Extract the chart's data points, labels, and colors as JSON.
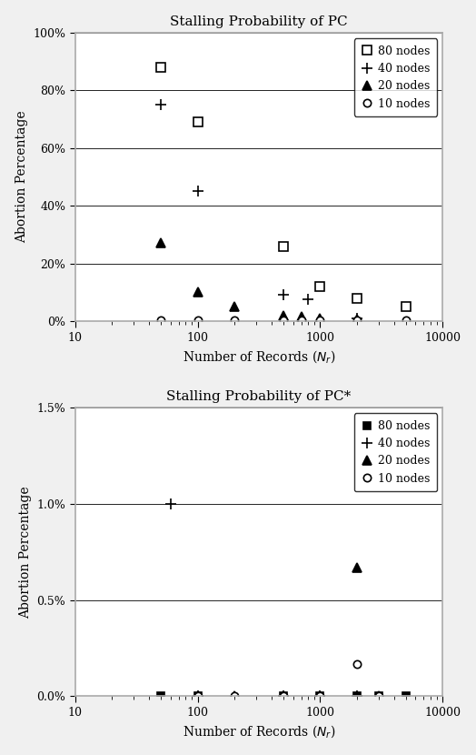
{
  "plot1": {
    "title": "Stalling Probability of PC",
    "series_order": [
      "80 nodes",
      "40 nodes",
      "20 nodes",
      "10 nodes"
    ],
    "series": {
      "80 nodes": {
        "marker": "s",
        "mfc": "white",
        "mec": "black",
        "ms": 7,
        "x": [
          50,
          100,
          500,
          1000,
          2000,
          5000
        ],
        "y": [
          0.88,
          0.69,
          0.26,
          0.12,
          0.08,
          0.05
        ]
      },
      "40 nodes": {
        "marker": "+",
        "mfc": "black",
        "mec": "black",
        "ms": 9,
        "x": [
          50,
          100,
          500,
          800,
          2000
        ],
        "y": [
          0.75,
          0.45,
          0.09,
          0.075,
          0.01
        ]
      },
      "20 nodes": {
        "marker": "^",
        "mfc": "black",
        "mec": "black",
        "ms": 7,
        "x": [
          50,
          100,
          200,
          500,
          700,
          1000,
          2000
        ],
        "y": [
          0.27,
          0.1,
          0.05,
          0.02,
          0.015,
          0.01,
          0.005
        ]
      },
      "10 nodes": {
        "marker": "o",
        "mfc": "white",
        "mec": "black",
        "ms": 6,
        "x": [
          50,
          100,
          200,
          500,
          700,
          1000,
          2000,
          5000
        ],
        "y": [
          0.003,
          0.003,
          0.002,
          0.003,
          0.003,
          0.003,
          0.002,
          0.002
        ]
      }
    },
    "ylabel": "Abortion Percentage",
    "ylim": [
      0,
      1.0
    ],
    "yticks": [
      0.0,
      0.2,
      0.4,
      0.6,
      0.8,
      1.0
    ],
    "yticklabels": [
      "0%",
      "20%",
      "40%",
      "60%",
      "80%",
      "100%"
    ],
    "xlim": [
      10,
      10000
    ]
  },
  "plot2": {
    "title": "Stalling Probability of PC*",
    "series_order": [
      "80 nodes",
      "40 nodes",
      "20 nodes",
      "10 nodes"
    ],
    "series": {
      "80 nodes": {
        "marker": "s",
        "mfc": "black",
        "mec": "black",
        "ms": 6,
        "x": [
          50,
          100,
          500,
          1000,
          2000,
          3000,
          5000
        ],
        "y": [
          0.0,
          0.0,
          0.0,
          0.0,
          0.0,
          0.0,
          0.0
        ]
      },
      "40 nodes": {
        "marker": "+",
        "mfc": "black",
        "mec": "black",
        "ms": 9,
        "x": [
          60,
          100,
          500,
          1000,
          2000
        ],
        "y": [
          0.01,
          0.0,
          0.0,
          0.0,
          0.0
        ]
      },
      "20 nodes": {
        "marker": "^",
        "mfc": "black",
        "mec": "black",
        "ms": 7,
        "x": [
          100,
          200,
          500,
          1000,
          2000,
          3000
        ],
        "y": [
          0.0,
          0.0,
          0.0,
          0.0,
          0.0067,
          0.0
        ]
      },
      "10 nodes": {
        "marker": "o",
        "mfc": "white",
        "mec": "black",
        "ms": 6,
        "x": [
          100,
          200,
          500,
          1000,
          2000,
          3000
        ],
        "y": [
          0.0,
          0.0,
          0.0,
          0.0,
          0.00165,
          0.0
        ]
      }
    },
    "ylabel": "Abortion Percentage",
    "ylim": [
      0,
      0.015
    ],
    "yticks": [
      0.0,
      0.005,
      0.01,
      0.015
    ],
    "yticklabels": [
      "0.0%",
      "0.5%",
      "1.0%",
      "1.5%"
    ],
    "xlim": [
      10,
      10000
    ]
  },
  "fig_bg": "#f0f0f0",
  "panel_bg": "white",
  "panel_border": "#aaaaaa",
  "xlabel": "Number of Records ($N_r$)",
  "title_fontsize": 11,
  "label_fontsize": 10,
  "tick_fontsize": 9,
  "legend_fontsize": 9
}
